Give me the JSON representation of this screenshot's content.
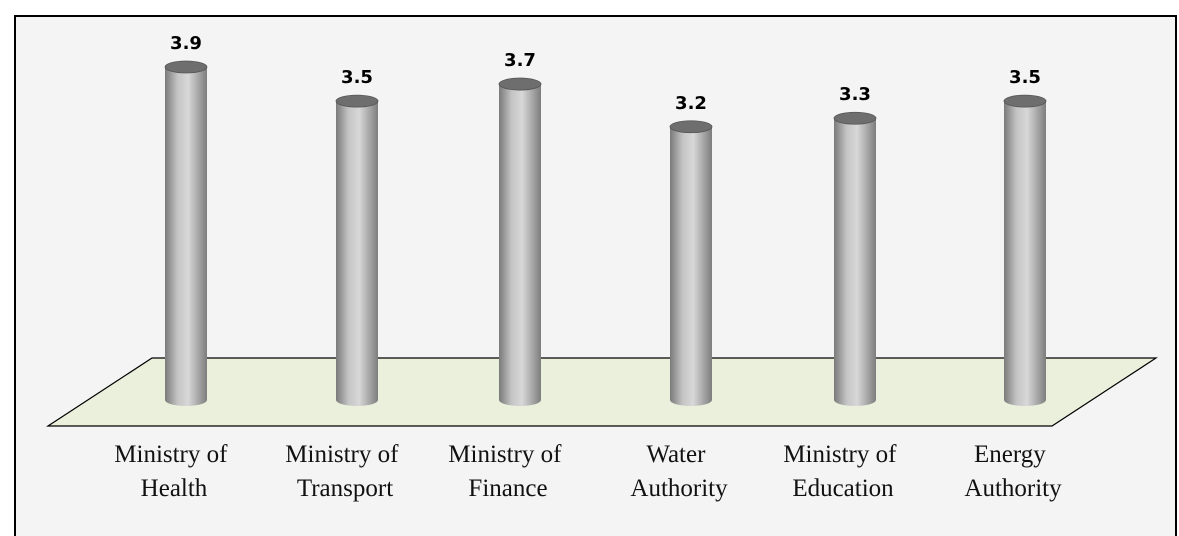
{
  "chart_data": {
    "type": "cylinder",
    "categories": [
      "Ministry of Health",
      "Ministry of Transport",
      "Ministry of Finance",
      "Water Authority",
      "Ministry of Education",
      "Energy Authority"
    ],
    "values": [
      3.9,
      3.5,
      3.7,
      3.2,
      3.3,
      3.5
    ],
    "color": "#a9a9a9"
  }
}
